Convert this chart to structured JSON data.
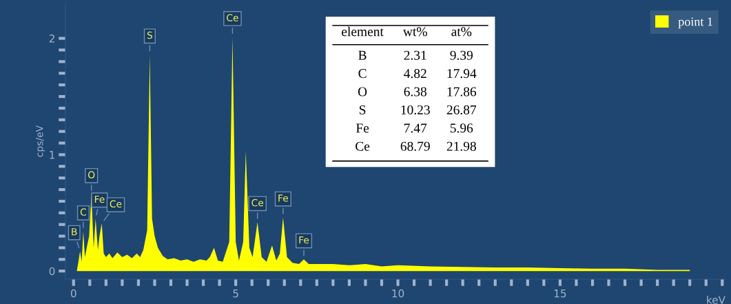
{
  "chart_data": {
    "type": "area",
    "xlabel": "keV",
    "ylabel": "cps/eV",
    "x": [
      0.1,
      0.15,
      0.2,
      0.25,
      0.3,
      0.35,
      0.42,
      0.48,
      0.55,
      0.62,
      0.68,
      0.75,
      0.8,
      0.87,
      0.93,
      1.0,
      1.1,
      1.2,
      1.35,
      1.5,
      1.65,
      1.8,
      1.95,
      2.05,
      2.15,
      2.27,
      2.35,
      2.42,
      2.5,
      2.6,
      2.75,
      2.9,
      3.1,
      3.3,
      3.5,
      3.7,
      3.9,
      4.1,
      4.2,
      4.33,
      4.45,
      4.6,
      4.8,
      4.9,
      5.0,
      5.1,
      5.23,
      5.31,
      5.42,
      5.52,
      5.67,
      5.8,
      5.95,
      6.12,
      6.25,
      6.36,
      6.46,
      6.58,
      6.75,
      6.95,
      7.1,
      7.25,
      7.5,
      8.0,
      8.5,
      9.0,
      9.5,
      10.0,
      11.0,
      12.0,
      13.0,
      14.0,
      15.0,
      16.0,
      17.0,
      18.0,
      19.0
    ],
    "series": [
      {
        "name": "point 1",
        "color": "#ffff00",
        "values": [
          0.0,
          0.08,
          0.17,
          0.08,
          0.34,
          0.12,
          0.22,
          0.3,
          0.66,
          0.2,
          0.45,
          0.18,
          0.3,
          0.41,
          0.15,
          0.12,
          0.15,
          0.11,
          0.16,
          0.12,
          0.14,
          0.11,
          0.15,
          0.12,
          0.18,
          0.35,
          1.86,
          0.45,
          0.3,
          0.2,
          0.13,
          0.1,
          0.11,
          0.09,
          0.1,
          0.08,
          0.1,
          0.09,
          0.12,
          0.2,
          0.09,
          0.08,
          0.25,
          2.01,
          0.25,
          0.09,
          0.25,
          1.03,
          0.2,
          0.12,
          0.42,
          0.12,
          0.08,
          0.22,
          0.09,
          0.15,
          0.46,
          0.12,
          0.07,
          0.06,
          0.1,
          0.06,
          0.06,
          0.06,
          0.05,
          0.06,
          0.04,
          0.05,
          0.04,
          0.035,
          0.03,
          0.03,
          0.025,
          0.02,
          0.02,
          0.01,
          0.01
        ]
      }
    ],
    "xlim": [
      -0.25,
      20.1
    ],
    "ylim": [
      -0.07,
      2.3
    ],
    "xticks": [
      0,
      {
        "value": 0.5,
        "label": null
      },
      {
        "value": 1,
        "label": null
      },
      {
        "value": 1.5,
        "label": null
      },
      {
        "value": 2,
        "label": null
      },
      {
        "value": 2.5,
        "label": null
      },
      {
        "value": 3,
        "label": null
      },
      {
        "value": 3.5,
        "label": null
      },
      {
        "value": 4,
        "label": null
      },
      {
        "value": 4.5,
        "label": null
      },
      5,
      {
        "value": 5.5,
        "label": null
      },
      {
        "value": 6,
        "label": null
      },
      {
        "value": 6.5,
        "label": null
      },
      {
        "value": 7,
        "label": null
      },
      {
        "value": 7.5,
        "label": null
      },
      {
        "value": 8,
        "label": null
      },
      {
        "value": 8.5,
        "label": null
      },
      {
        "value": 9,
        "label": null
      },
      {
        "value": 9.5,
        "label": null
      },
      10,
      {
        "value": 10.5,
        "label": null
      },
      {
        "value": 11,
        "label": null
      },
      {
        "value": 11.5,
        "label": null
      },
      {
        "value": 12,
        "label": null
      },
      {
        "value": 12.5,
        "label": null
      },
      {
        "value": 13,
        "label": null
      },
      {
        "value": 13.5,
        "label": null
      },
      {
        "value": 14,
        "label": null
      },
      {
        "value": 14.5,
        "label": null
      },
      15,
      {
        "value": 15.5,
        "label": null
      },
      {
        "value": 16,
        "label": null
      },
      {
        "value": 16.5,
        "label": null
      },
      {
        "value": 17,
        "label": null
      },
      {
        "value": 17.5,
        "label": null
      },
      {
        "value": 18,
        "label": null
      },
      {
        "value": 18.5,
        "label": null
      },
      {
        "value": 19,
        "label": null
      },
      {
        "value": 19.5,
        "label": null
      },
      {
        "value": 20,
        "label": null
      }
    ],
    "yticks": [
      0,
      {
        "value": 0.1,
        "label": null
      },
      {
        "value": 0.2,
        "label": null
      },
      {
        "value": 0.3,
        "label": null
      },
      {
        "value": 0.4,
        "label": null
      },
      {
        "value": 0.5,
        "label": null
      },
      {
        "value": 0.6,
        "label": null
      },
      {
        "value": 0.7,
        "label": null
      },
      {
        "value": 0.8,
        "label": null
      },
      {
        "value": 0.9,
        "label": null
      },
      1,
      {
        "value": 1.1,
        "label": null
      },
      {
        "value": 1.2,
        "label": null
      },
      {
        "value": 1.3,
        "label": null
      },
      {
        "value": 1.4,
        "label": null
      },
      {
        "value": 1.5,
        "label": null
      },
      {
        "value": 1.6,
        "label": null
      },
      {
        "value": 1.7,
        "label": null
      },
      {
        "value": 1.8,
        "label": null
      },
      {
        "value": 1.9,
        "label": null
      },
      2
    ],
    "grid": false,
    "legend": "top right",
    "annotations": [
      {
        "text": "B",
        "x": 0.2,
        "y": 0.17
      },
      {
        "text": "C",
        "x": 0.3,
        "y": 0.34
      },
      {
        "text": "O",
        "x": 0.55,
        "y": 0.66
      },
      {
        "text": "Fe",
        "x": 0.68,
        "y": 0.45
      },
      {
        "text": "Ce",
        "x": 0.87,
        "y": 0.41
      },
      {
        "text": "S",
        "x": 2.35,
        "y": 1.86
      },
      {
        "text": "Ce",
        "x": 4.9,
        "y": 2.01
      },
      {
        "text": "Ce",
        "x": 5.67,
        "y": 0.42
      },
      {
        "text": "Fe",
        "x": 6.46,
        "y": 0.46
      },
      {
        "text": "Fe",
        "x": 7.1,
        "y": 0.1
      },
      "element",
      "wt%",
      "at%",
      "B",
      "2.31",
      "9.39",
      "C",
      "4.82",
      "17.94",
      "O",
      "6.38",
      "17.86",
      "S",
      "10.23",
      "26.87",
      "Fe",
      "7.47",
      "5.96",
      "Ce",
      "68.79",
      "21.98"
    ]
  }
}
